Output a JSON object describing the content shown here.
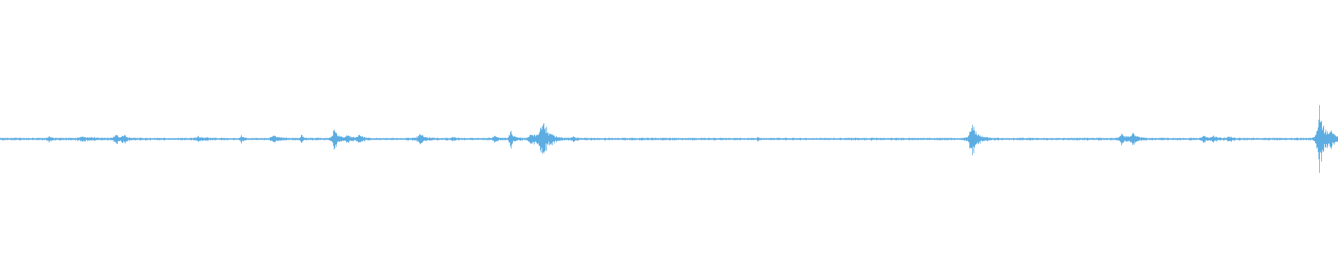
{
  "chart_data": {
    "type": "waveform",
    "title": "",
    "xlabel": "",
    "ylabel": "",
    "axes_visible": false,
    "grid": false,
    "ylim": [
      -1,
      1
    ],
    "xlim": [
      0,
      1
    ],
    "color": "#5dade2",
    "baseline_amplitude": 0.006,
    "bursts": [
      {
        "t": 0.036,
        "amp": 0.02,
        "decay": 0.002
      },
      {
        "t": 0.062,
        "amp": 0.012,
        "decay": 0.01
      },
      {
        "t": 0.086,
        "amp": 0.05,
        "decay": 0.002
      },
      {
        "t": 0.092,
        "amp": 0.03,
        "decay": 0.003
      },
      {
        "t": 0.148,
        "amp": 0.015,
        "decay": 0.006
      },
      {
        "t": 0.18,
        "amp": 0.04,
        "decay": 0.001
      },
      {
        "t": 0.204,
        "amp": 0.025,
        "decay": 0.004
      },
      {
        "t": 0.225,
        "amp": 0.06,
        "decay": 0.001
      },
      {
        "t": 0.249,
        "amp": 0.08,
        "decay": 0.003
      },
      {
        "t": 0.259,
        "amp": 0.03,
        "decay": 0.004
      },
      {
        "t": 0.268,
        "amp": 0.03,
        "decay": 0.003
      },
      {
        "t": 0.313,
        "amp": 0.05,
        "decay": 0.003
      },
      {
        "t": 0.338,
        "amp": 0.012,
        "decay": 0.002
      },
      {
        "t": 0.369,
        "amp": 0.03,
        "decay": 0.002
      },
      {
        "t": 0.381,
        "amp": 0.08,
        "decay": 0.002
      },
      {
        "t": 0.397,
        "amp": 0.04,
        "decay": 0.006
      },
      {
        "t": 0.405,
        "amp": 0.18,
        "decay": 0.004
      },
      {
        "t": 0.428,
        "amp": 0.012,
        "decay": 0.003
      },
      {
        "t": 0.566,
        "amp": 0.012,
        "decay": 0.001
      },
      {
        "t": 0.726,
        "amp": 0.13,
        "decay": 0.004
      },
      {
        "t": 0.838,
        "amp": 0.035,
        "decay": 0.004
      },
      {
        "t": 0.846,
        "amp": 0.045,
        "decay": 0.003
      },
      {
        "t": 0.899,
        "amp": 0.04,
        "decay": 0.002
      },
      {
        "t": 0.906,
        "amp": 0.02,
        "decay": 0.004
      },
      {
        "t": 0.918,
        "amp": 0.025,
        "decay": 0.002
      },
      {
        "t": 0.984,
        "amp": 0.02,
        "decay": 0.004
      },
      {
        "t": 0.986,
        "amp": 0.26,
        "decay": 0.003
      },
      {
        "t": 0.994,
        "amp": 0.05,
        "decay": 0.005
      }
    ]
  }
}
